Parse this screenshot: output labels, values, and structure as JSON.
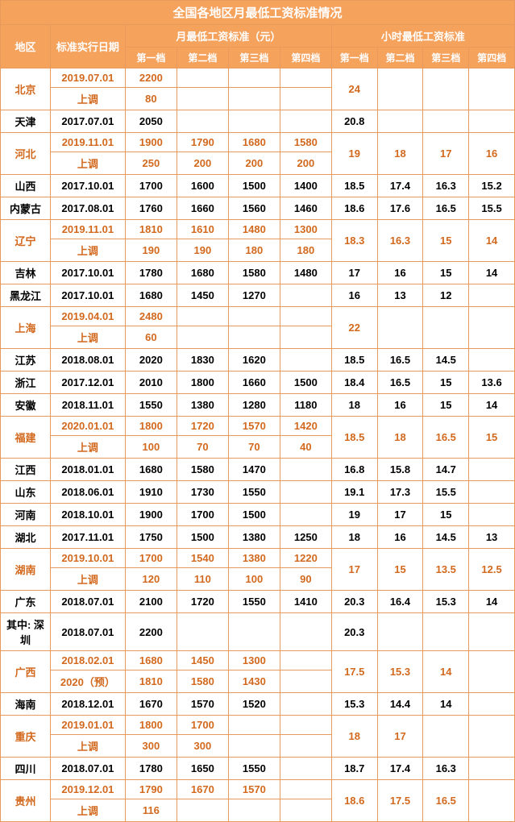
{
  "title": "全国各地区月最低工资标准情况",
  "headers": {
    "region": "地区",
    "date": "标准实行日期",
    "monthly": "月最低工资标准（元）",
    "hourly": "小时最低工资标准",
    "t1": "第一档",
    "t2": "第二档",
    "t3": "第三档",
    "t4": "第四档",
    "ht1": "第一档",
    "ht2": "第二档",
    "ht3": "第三档",
    "ht4": "第四档",
    "up": "上调"
  },
  "style": {
    "highlight_color": "#d2691e",
    "black_color": "#000000",
    "border_color": "#e89a5d",
    "header_bg": "#f5a25d",
    "header_fg": "#ffffff"
  },
  "rows": [
    {
      "region": "北京",
      "hl": true,
      "dual": true,
      "r1": {
        "date": "2019.07.01",
        "m": [
          "2200",
          "",
          "",
          ""
        ]
      },
      "r2": {
        "date": "上调",
        "m": [
          "80",
          "",
          "",
          ""
        ]
      },
      "h": [
        "24",
        "",
        "",
        ""
      ]
    },
    {
      "region": "天津",
      "hl": false,
      "dual": false,
      "r1": {
        "date": "2017.07.01",
        "m": [
          "2050",
          "",
          "",
          ""
        ]
      },
      "h": [
        "20.8",
        "",
        "",
        ""
      ]
    },
    {
      "region": "河北",
      "hl": true,
      "dual": true,
      "r1": {
        "date": "2019.11.01",
        "m": [
          "1900",
          "1790",
          "1680",
          "1580"
        ]
      },
      "r2": {
        "date": "上调",
        "m": [
          "250",
          "200",
          "200",
          "200"
        ]
      },
      "h": [
        "19",
        "18",
        "17",
        "16"
      ]
    },
    {
      "region": "山西",
      "hl": false,
      "dual": false,
      "r1": {
        "date": "2017.10.01",
        "m": [
          "1700",
          "1600",
          "1500",
          "1400"
        ]
      },
      "h": [
        "18.5",
        "17.4",
        "16.3",
        "15.2"
      ]
    },
    {
      "region": "内蒙古",
      "hl": false,
      "dual": false,
      "r1": {
        "date": "2017.08.01",
        "m": [
          "1760",
          "1660",
          "1560",
          "1460"
        ]
      },
      "h": [
        "18.6",
        "17.6",
        "16.5",
        "15.5"
      ]
    },
    {
      "region": "辽宁",
      "hl": true,
      "dual": true,
      "r1": {
        "date": "2019.11.01",
        "m": [
          "1810",
          "1610",
          "1480",
          "1300"
        ]
      },
      "r2": {
        "date": "上调",
        "m": [
          "190",
          "190",
          "180",
          "180"
        ]
      },
      "h": [
        "18.3",
        "16.3",
        "15",
        "14"
      ]
    },
    {
      "region": "吉林",
      "hl": false,
      "dual": false,
      "r1": {
        "date": "2017.10.01",
        "m": [
          "1780",
          "1680",
          "1580",
          "1480"
        ]
      },
      "h": [
        "17",
        "16",
        "15",
        "14"
      ]
    },
    {
      "region": "黑龙江",
      "hl": false,
      "dual": false,
      "r1": {
        "date": "2017.10.01",
        "m": [
          "1680",
          "1450",
          "1270",
          ""
        ]
      },
      "h": [
        "16",
        "13",
        "12",
        ""
      ]
    },
    {
      "region": "上海",
      "hl": true,
      "dual": true,
      "r1": {
        "date": "2019.04.01",
        "m": [
          "2480",
          "",
          "",
          ""
        ]
      },
      "r2": {
        "date": "上调",
        "m": [
          "60",
          "",
          "",
          ""
        ]
      },
      "h": [
        "22",
        "",
        "",
        ""
      ]
    },
    {
      "region": "江苏",
      "hl": false,
      "dual": false,
      "r1": {
        "date": "2018.08.01",
        "m": [
          "2020",
          "1830",
          "1620",
          ""
        ]
      },
      "h": [
        "18.5",
        "16.5",
        "14.5",
        ""
      ]
    },
    {
      "region": "浙江",
      "hl": false,
      "dual": false,
      "r1": {
        "date": "2017.12.01",
        "m": [
          "2010",
          "1800",
          "1660",
          "1500"
        ]
      },
      "h": [
        "18.4",
        "16.5",
        "15",
        "13.6"
      ]
    },
    {
      "region": "安徽",
      "hl": false,
      "dual": false,
      "r1": {
        "date": "2018.11.01",
        "m": [
          "1550",
          "1380",
          "1280",
          "1180"
        ]
      },
      "h": [
        "18",
        "16",
        "15",
        "14"
      ]
    },
    {
      "region": "福建",
      "hl": true,
      "dual": true,
      "r1": {
        "date": "2020.01.01",
        "m": [
          "1800",
          "1720",
          "1570",
          "1420"
        ]
      },
      "r2": {
        "date": "上调",
        "m": [
          "100",
          "70",
          "70",
          "40"
        ]
      },
      "h": [
        "18.5",
        "18",
        "16.5",
        "15"
      ]
    },
    {
      "region": "江西",
      "hl": false,
      "dual": false,
      "r1": {
        "date": "2018.01.01",
        "m": [
          "1680",
          "1580",
          "1470",
          ""
        ]
      },
      "h": [
        "16.8",
        "15.8",
        "14.7",
        ""
      ]
    },
    {
      "region": "山东",
      "hl": false,
      "dual": false,
      "r1": {
        "date": "2018.06.01",
        "m": [
          "1910",
          "1730",
          "1550",
          ""
        ]
      },
      "h": [
        "19.1",
        "17.3",
        "15.5",
        ""
      ]
    },
    {
      "region": "河南",
      "hl": false,
      "dual": false,
      "r1": {
        "date": "2018.10.01",
        "m": [
          "1900",
          "1700",
          "1500",
          ""
        ]
      },
      "h": [
        "19",
        "17",
        "15",
        ""
      ]
    },
    {
      "region": "湖北",
      "hl": false,
      "dual": false,
      "r1": {
        "date": "2017.11.01",
        "m": [
          "1750",
          "1500",
          "1380",
          "1250"
        ]
      },
      "h": [
        "18",
        "16",
        "14.5",
        "13"
      ]
    },
    {
      "region": "湖南",
      "hl": true,
      "dual": true,
      "r1": {
        "date": "2019.10.01",
        "m": [
          "1700",
          "1540",
          "1380",
          "1220"
        ]
      },
      "r2": {
        "date": "上调",
        "m": [
          "120",
          "110",
          "100",
          "90"
        ]
      },
      "h": [
        "17",
        "15",
        "13.5",
        "12.5"
      ]
    },
    {
      "region": "广东",
      "hl": false,
      "dual": false,
      "r1": {
        "date": "2018.07.01",
        "m": [
          "2100",
          "1720",
          "1550",
          "1410"
        ]
      },
      "h": [
        "20.3",
        "16.4",
        "15.3",
        "14"
      ]
    },
    {
      "region": "其中: 深圳",
      "hl": false,
      "dual": false,
      "r1": {
        "date": "2018.07.01",
        "m": [
          "2200",
          "",
          "",
          ""
        ]
      },
      "h": [
        "20.3",
        "",
        "",
        ""
      ]
    },
    {
      "region": "广西",
      "hl": true,
      "dual": true,
      "r1": {
        "date": "2018.02.01",
        "m": [
          "1680",
          "1450",
          "1300",
          ""
        ]
      },
      "r2": {
        "date": "2020（预）",
        "m": [
          "1810",
          "1580",
          "1430",
          ""
        ]
      },
      "h": [
        "17.5",
        "15.3",
        "14",
        ""
      ]
    },
    {
      "region": "海南",
      "hl": false,
      "dual": false,
      "r1": {
        "date": "2018.12.01",
        "m": [
          "1670",
          "1570",
          "1520",
          ""
        ]
      },
      "h": [
        "15.3",
        "14.4",
        "14",
        ""
      ]
    },
    {
      "region": "重庆",
      "hl": true,
      "dual": true,
      "r1": {
        "date": "2019.01.01",
        "m": [
          "1800",
          "1700",
          "",
          ""
        ]
      },
      "r2": {
        "date": "上调",
        "m": [
          "300",
          "300",
          "",
          ""
        ]
      },
      "h": [
        "18",
        "17",
        "",
        ""
      ]
    },
    {
      "region": "四川",
      "hl": false,
      "dual": false,
      "r1": {
        "date": "2018.07.01",
        "m": [
          "1780",
          "1650",
          "1550",
          ""
        ]
      },
      "h": [
        "18.7",
        "17.4",
        "16.3",
        ""
      ]
    },
    {
      "region": "贵州",
      "hl": true,
      "dual": true,
      "r1": {
        "date": "2019.12.01",
        "m": [
          "1790",
          "1670",
          "1570",
          ""
        ]
      },
      "r2": {
        "date": "上调",
        "m": [
          "116",
          "",
          "",
          ""
        ]
      },
      "h": [
        "18.6",
        "17.5",
        "16.5",
        ""
      ]
    }
  ]
}
